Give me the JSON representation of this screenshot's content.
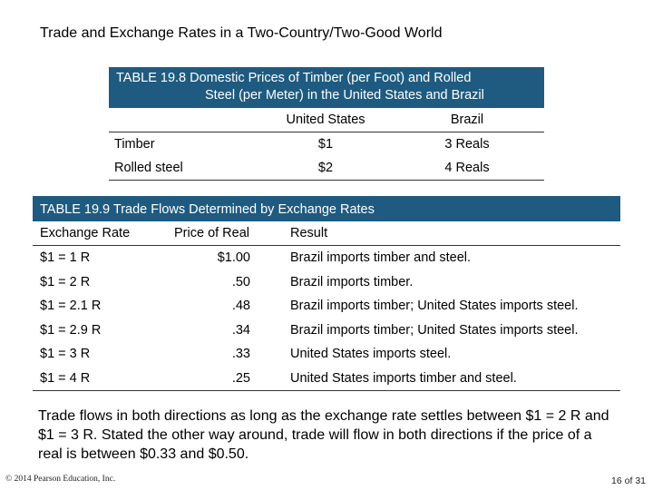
{
  "slide_title": "Trade and Exchange Rates in a Two-Country/Two-Good World",
  "table_19_8": {
    "title_line1": "TABLE 19.8  Domestic Prices of Timber (per Foot) and Rolled",
    "title_line2": "Steel (per Meter) in the United States and Brazil",
    "columns": [
      "",
      "United States",
      "Brazil"
    ],
    "rows": [
      [
        "Timber",
        "$1",
        "3 Reals"
      ],
      [
        "Rolled steel",
        "$2",
        "4 Reals"
      ]
    ]
  },
  "table_19_9": {
    "title": "TABLE 19.9  Trade Flows Determined by Exchange Rates",
    "columns": [
      "Exchange Rate",
      "Price of Real",
      "Result"
    ],
    "rows": [
      [
        "$1 = 1 R",
        "$1.00",
        "Brazil imports timber and steel."
      ],
      [
        "$1 = 2 R",
        ".50",
        "Brazil imports timber."
      ],
      [
        "$1 = 2.1 R",
        ".48",
        "Brazil imports timber; United States imports steel."
      ],
      [
        "$1 = 2.9 R",
        ".34",
        "Brazil imports timber; United States imports steel."
      ],
      [
        "$1 = 3 R",
        ".33",
        "United States imports steel."
      ],
      [
        "$1 = 4 R",
        ".25",
        "United States imports timber and steel."
      ]
    ]
  },
  "paragraph": "Trade flows in both directions as long as the exchange rate settles between $1 = 2 R and $1 = 3 R. Stated the other way around, trade will flow in both directions if the price of a real is between $0.33 and $0.50.",
  "footer": {
    "copyright": "© 2014 Pearson Education, Inc.",
    "page": "16 of 31"
  },
  "colors": {
    "table_header_bg": "#1f5b80",
    "table_header_text": "#ffffff"
  }
}
